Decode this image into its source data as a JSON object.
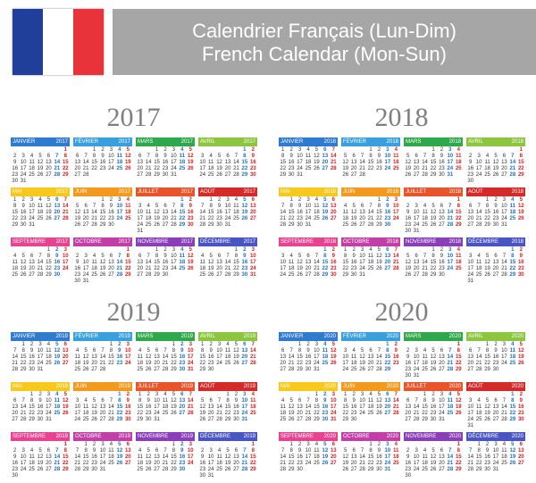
{
  "header": {
    "title_fr": "Calendrier Français (Lun-Dim)",
    "title_en": "French Calendar (Mon-Sun)",
    "flag_colors": [
      "#1f3f9a",
      "#ffffff",
      "#e8333b"
    ],
    "bar_color": "#a6a6a6"
  },
  "month_names": [
    "JANVIER",
    "FÉVRIER",
    "MARS",
    "AVRIL",
    "MAI",
    "JUIN",
    "JUILLET",
    "AOÛT",
    "SEPTEMBRE",
    "OCTOBRE",
    "NOVEMBRE",
    "DÉCEMBRE"
  ],
  "month_colors": [
    "#2f7bd0",
    "#3aa0dd",
    "#2ea84a",
    "#8cc63f",
    "#f7c91d",
    "#f39a1e",
    "#e8552a",
    "#d42a2a",
    "#e84393",
    "#c13fa6",
    "#8a3fb8",
    "#4a55c4"
  ],
  "weekend_colors": {
    "saturday": "#1f6fc6",
    "sunday": "#d42020"
  },
  "years": [
    "2017",
    "2018",
    "2019",
    "2020"
  ]
}
